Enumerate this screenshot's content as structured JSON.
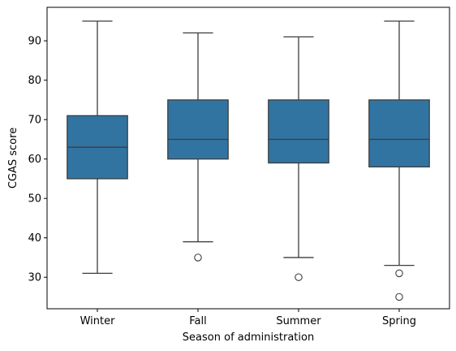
{
  "chart_data": {
    "type": "box",
    "xlabel": "Season of administration",
    "ylabel": "CGAS score",
    "categories": [
      "Winter",
      "Fall",
      "Summer",
      "Spring"
    ],
    "y_ticks": [
      30,
      40,
      50,
      60,
      70,
      80,
      90
    ],
    "y_tick_labels": [
      "30",
      "40",
      "50",
      "60",
      "70",
      "80",
      "90"
    ],
    "ylim": [
      22,
      98.5
    ],
    "grid": false,
    "box_color": "#3274a1",
    "line_color": "#3d3d3d",
    "boxes": [
      {
        "category": "Winter",
        "whisker_low": 31,
        "q1": 55,
        "median": 63,
        "q3": 71,
        "whisker_high": 95,
        "outliers": []
      },
      {
        "category": "Fall",
        "whisker_low": 39,
        "q1": 60,
        "median": 65,
        "q3": 75,
        "whisker_high": 92,
        "outliers": [
          35
        ]
      },
      {
        "category": "Summer",
        "whisker_low": 35,
        "q1": 59,
        "median": 65,
        "q3": 75,
        "whisker_high": 91,
        "outliers": [
          30
        ]
      },
      {
        "category": "Spring",
        "whisker_low": 33,
        "q1": 58,
        "median": 65,
        "q3": 75,
        "whisker_high": 95,
        "outliers": [
          31,
          25
        ]
      }
    ]
  }
}
